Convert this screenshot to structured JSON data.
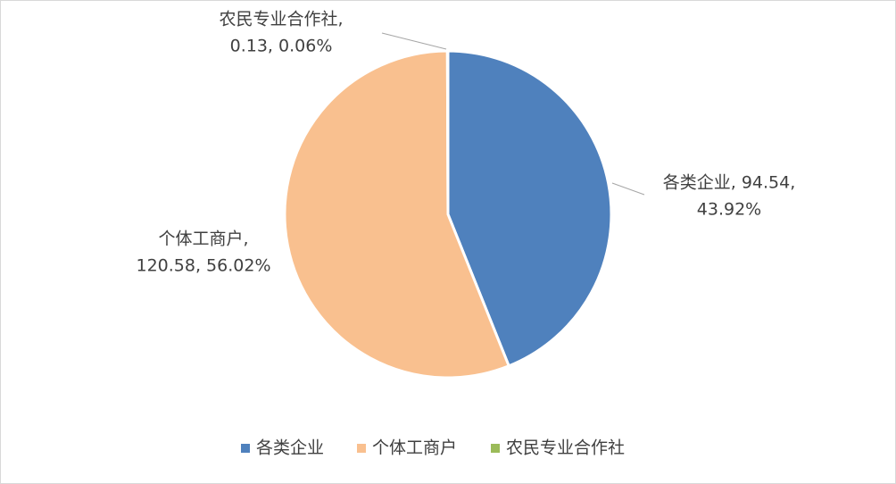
{
  "chart_data": {
    "type": "pie",
    "categories": [
      "各类企业",
      "个体工商户",
      "农民专业合作社"
    ],
    "values": [
      94.54,
      120.58,
      0.13
    ],
    "value_labels": [
      [
        "各类企业, 94.54,",
        "43.92%"
      ],
      [
        "个体工商户,",
        "120.58, 56.02%"
      ],
      [
        "农民专业合作社,",
        "0.13, 0.06%"
      ]
    ],
    "colors": [
      "#4f81bd",
      "#f9c08f",
      "#9bbb59"
    ],
    "legend": "bottom"
  }
}
